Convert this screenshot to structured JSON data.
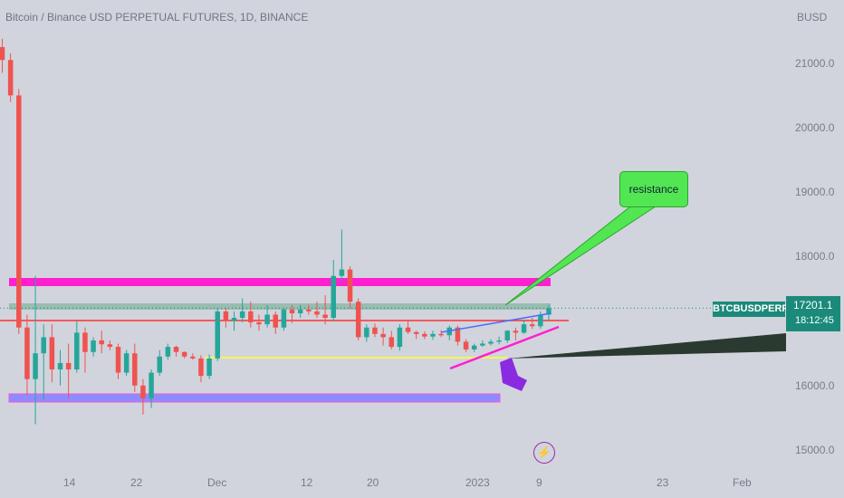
{
  "header": {
    "title": "Bitcoin / Binance USD PERPETUAL FUTURES, 1D, BINANCE"
  },
  "price_axis": {
    "currency": "BUSD"
  },
  "symbol_tag": "BTCBUSDPERP",
  "price_tag": {
    "price": "17201.1",
    "countdown": "18:12:45"
  },
  "annotation": {
    "resistance": "resistance"
  },
  "icons": {
    "bolt": "lightning-icon"
  },
  "colors": {
    "background": "#d1d4dc",
    "up": "#26a69a",
    "down": "#ef5350",
    "magenta_zone": "#ff1fd0",
    "blue_zone": "#8c8cff",
    "green_zone": "#8fb8a8",
    "red_line": "#ff3030",
    "yellow_line": "#f5f55a",
    "callout": "#53e653",
    "arrow": "#8a2be2"
  },
  "chart_data": {
    "type": "candlestick",
    "title": "Bitcoin / Binance USD PERPETUAL FUTURES, 1D, BINANCE",
    "y_axis": {
      "unit": "BUSD",
      "ticks": [
        15000,
        16000,
        17000,
        18000,
        19000,
        20000,
        21000
      ],
      "tick_labels": [
        "15000.0",
        "16000.0",
        "17000.0",
        "18000.0",
        "19000.0",
        "20000.0",
        "21000.0"
      ],
      "ylim": [
        14600,
        21800
      ]
    },
    "x_axis": {
      "tick_labels": [
        "14",
        "22",
        "Dec",
        "12",
        "20",
        "2023",
        "9",
        "23",
        "Feb"
      ]
    },
    "last_price": 17201.1,
    "candles": [
      [
        21250,
        21380,
        20850,
        21050
      ],
      [
        21050,
        21150,
        20400,
        20500
      ],
      [
        20500,
        20600,
        16800,
        16900
      ],
      [
        16900,
        17100,
        15850,
        16100
      ],
      [
        16100,
        17700,
        15400,
        16500
      ],
      [
        16500,
        16950,
        15780,
        16750
      ],
      [
        16750,
        16950,
        16050,
        16250
      ],
      [
        16250,
        16550,
        16000,
        16350
      ],
      [
        16350,
        16650,
        15800,
        16250
      ],
      [
        16250,
        17000,
        16200,
        16820
      ],
      [
        16820,
        16900,
        16200,
        16520
      ],
      [
        16520,
        16750,
        16450,
        16700
      ],
      [
        16700,
        16850,
        16500,
        16640
      ],
      [
        16640,
        16700,
        16550,
        16600
      ],
      [
        16600,
        16650,
        16100,
        16200
      ],
      [
        16200,
        16550,
        16150,
        16500
      ],
      [
        16500,
        16650,
        15900,
        16000
      ],
      [
        16000,
        16100,
        15550,
        15800
      ],
      [
        15800,
        16250,
        15650,
        16200
      ],
      [
        16200,
        16550,
        16150,
        16450
      ],
      [
        16450,
        16650,
        16400,
        16600
      ],
      [
        16600,
        16620,
        16450,
        16520
      ],
      [
        16520,
        16530,
        16420,
        16450
      ],
      [
        16450,
        16500,
        16400,
        16420
      ],
      [
        16420,
        16470,
        16050,
        16150
      ],
      [
        16150,
        16480,
        16100,
        16420
      ],
      [
        16420,
        17200,
        16380,
        17150
      ],
      [
        17150,
        17200,
        16900,
        17000
      ],
      [
        17000,
        17150,
        16850,
        17050
      ],
      [
        17050,
        17350,
        16980,
        17150
      ],
      [
        17150,
        17300,
        16900,
        16980
      ],
      [
        16980,
        17100,
        16850,
        16950
      ],
      [
        16950,
        17250,
        16900,
        17100
      ],
      [
        17100,
        17150,
        16800,
        16900
      ],
      [
        16900,
        17200,
        16850,
        17180
      ],
      [
        17180,
        17250,
        16970,
        17120
      ],
      [
        17120,
        17250,
        17050,
        17180
      ],
      [
        17180,
        17250,
        17100,
        17150
      ],
      [
        17150,
        17300,
        17050,
        17100
      ],
      [
        17100,
        17400,
        16950,
        17050
      ],
      [
        17050,
        17950,
        17000,
        17700
      ],
      [
        17700,
        18420,
        17600,
        17800
      ],
      [
        17800,
        17850,
        17200,
        17300
      ],
      [
        17300,
        17350,
        16700,
        16750
      ],
      [
        16750,
        16950,
        16680,
        16900
      ],
      [
        16900,
        16960,
        16750,
        16800
      ],
      [
        16800,
        16900,
        16620,
        16750
      ],
      [
        16750,
        16850,
        16560,
        16600
      ],
      [
        16600,
        16950,
        16540,
        16900
      ],
      [
        16900,
        17020,
        16800,
        16830
      ],
      [
        16830,
        16850,
        16720,
        16800
      ],
      [
        16800,
        16840,
        16720,
        16760
      ],
      [
        16760,
        16850,
        16710,
        16800
      ],
      [
        16800,
        16860,
        16750,
        16780
      ],
      [
        16780,
        16930,
        16700,
        16900
      ],
      [
        16900,
        16930,
        16620,
        16680
      ],
      [
        16680,
        16720,
        16520,
        16560
      ],
      [
        16560,
        16650,
        16520,
        16620
      ],
      [
        16620,
        16700,
        16600,
        16650
      ],
      [
        16650,
        16720,
        16620,
        16680
      ],
      [
        16680,
        16760,
        16640,
        16700
      ],
      [
        16700,
        16860,
        16660,
        16850
      ],
      [
        16850,
        16900,
        16700,
        16820
      ],
      [
        16820,
        17020,
        16800,
        16950
      ],
      [
        16950,
        17050,
        16880,
        16920
      ],
      [
        16920,
        17150,
        16880,
        17100
      ],
      [
        17100,
        17250,
        17000,
        17201
      ]
    ]
  }
}
